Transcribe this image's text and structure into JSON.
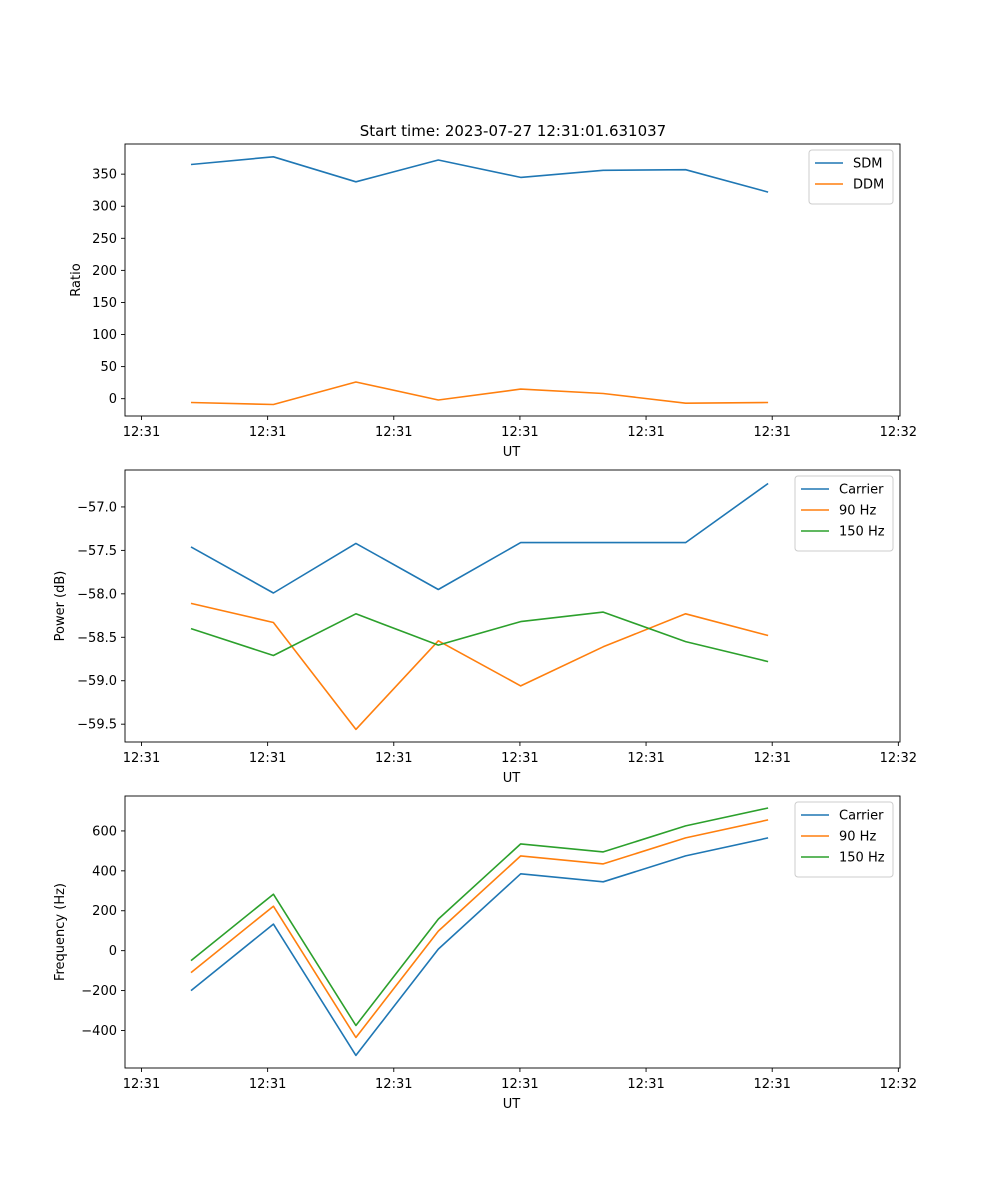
{
  "figure_title": "Start time: 2023-07-27 12:31:01.631037",
  "chart_data": [
    {
      "type": "line",
      "title": "Start time: 2023-07-27 12:31:01.631037",
      "xlabel": "UT",
      "ylabel": "Ratio",
      "x": [
        1,
        2,
        3,
        4,
        5,
        6,
        7,
        8
      ],
      "xlim": [
        0.2,
        9.6
      ],
      "xticks": [
        0.4,
        1.93,
        3.46,
        4.99,
        6.52,
        8.05,
        9.58
      ],
      "xtick_labels": [
        "12:31",
        "12:31",
        "12:31",
        "12:31",
        "12:31",
        "12:31",
        "12:32"
      ],
      "ylim": [
        -27,
        397
      ],
      "yticks": [
        0,
        50,
        100,
        150,
        200,
        250,
        300,
        350
      ],
      "ytick_labels": [
        "0",
        "50",
        "100",
        "150",
        "200",
        "250",
        "300",
        "350"
      ],
      "legend_position": "top-right",
      "series": [
        {
          "name": "SDM",
          "color": "#1f77b4",
          "values": [
            365,
            377,
            338,
            372,
            345,
            356,
            357,
            322
          ]
        },
        {
          "name": "DDM",
          "color": "#ff7f0e",
          "values": [
            -6,
            -9,
            26,
            -2,
            15,
            8,
            -7,
            -6
          ]
        }
      ]
    },
    {
      "type": "line",
      "title": "",
      "xlabel": "UT",
      "ylabel": "Power (dB)",
      "x": [
        1,
        2,
        3,
        4,
        5,
        6,
        7,
        8
      ],
      "xlim": [
        0.2,
        9.6
      ],
      "xticks": [
        0.4,
        1.93,
        3.46,
        4.99,
        6.52,
        8.05,
        9.58
      ],
      "xtick_labels": [
        "12:31",
        "12:31",
        "12:31",
        "12:31",
        "12:31",
        "12:31",
        "12:32"
      ],
      "ylim": [
        -59.705,
        -56.575
      ],
      "yticks": [
        -59.5,
        -59.0,
        -58.5,
        -58.0,
        -57.5,
        -57.0
      ],
      "ytick_labels": [
        "−59.5",
        "−59.0",
        "−58.5",
        "−58.0",
        "−57.5",
        "−57.0"
      ],
      "legend_position": "top-right",
      "series": [
        {
          "name": "Carrier",
          "color": "#1f77b4",
          "values": [
            -57.46,
            -57.99,
            -57.42,
            -57.95,
            -57.41,
            -57.41,
            -57.41,
            -56.73
          ]
        },
        {
          "name": "90 Hz",
          "color": "#ff7f0e",
          "values": [
            -58.11,
            -58.33,
            -59.56,
            -58.54,
            -59.06,
            -58.61,
            -58.23,
            -58.48
          ]
        },
        {
          "name": "150 Hz",
          "color": "#2ca02c",
          "values": [
            -58.4,
            -58.71,
            -58.23,
            -58.59,
            -58.32,
            -58.21,
            -58.55,
            -58.78
          ]
        }
      ]
    },
    {
      "type": "line",
      "title": "",
      "xlabel": "UT",
      "ylabel": "Frequency (Hz)",
      "x": [
        1,
        2,
        3,
        4,
        5,
        6,
        7,
        8
      ],
      "xlim": [
        0.2,
        9.6
      ],
      "xticks": [
        0.4,
        1.93,
        3.46,
        4.99,
        6.52,
        8.05,
        9.58
      ],
      "xtick_labels": [
        "12:31",
        "12:31",
        "12:31",
        "12:31",
        "12:31",
        "12:31",
        "12:32"
      ],
      "ylim": [
        -588,
        775
      ],
      "yticks": [
        -400,
        -200,
        0,
        200,
        400,
        600
      ],
      "ytick_labels": [
        "−400",
        "−200",
        "0",
        "200",
        "400",
        "600"
      ],
      "legend_position": "top-right",
      "series": [
        {
          "name": "Carrier",
          "color": "#1f77b4",
          "values": [
            -200,
            133,
            -525,
            8,
            385,
            345,
            475,
            565
          ]
        },
        {
          "name": "90 Hz",
          "color": "#ff7f0e",
          "values": [
            -110,
            223,
            -435,
            98,
            475,
            435,
            565,
            655
          ]
        },
        {
          "name": "150 Hz",
          "color": "#2ca02c",
          "values": [
            -50,
            283,
            -375,
            158,
            535,
            495,
            625,
            715
          ]
        }
      ]
    }
  ]
}
